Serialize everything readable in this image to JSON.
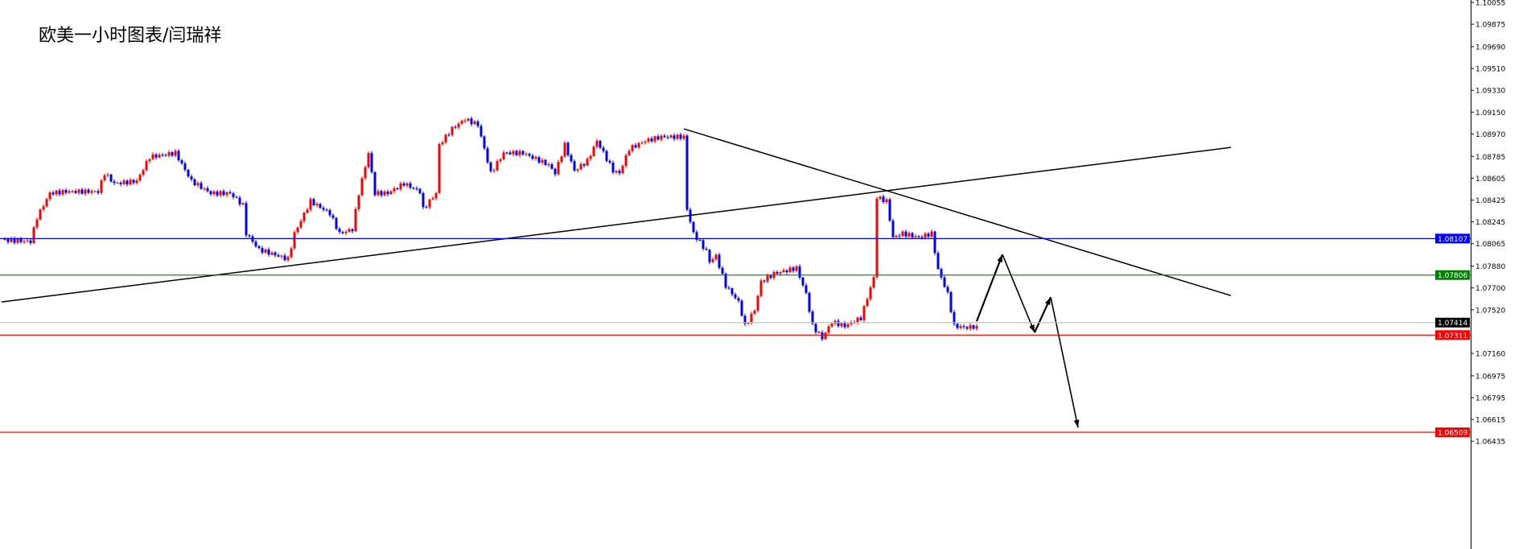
{
  "title": "欧美一小时图表/闫瑞祥",
  "chart_data": {
    "type": "candlestick",
    "title": "欧美一小时图表/闫瑞祥",
    "ylim": [
      1.064,
      1.1008
    ],
    "grid": false,
    "y_ticks": [
      "1.10055",
      "1.09875",
      "1.09690",
      "1.09510",
      "1.09330",
      "1.09150",
      "1.08970",
      "1.08785",
      "1.08605",
      "1.08425",
      "1.08245",
      "1.08065",
      "1.07880",
      "1.07700",
      "1.07520",
      "1.07160",
      "1.06975",
      "1.06795",
      "1.06615",
      "1.06435"
    ],
    "up_color": "#ff0000",
    "down_color": "#0000ff",
    "close_path": [
      [
        0,
        1.08096
      ],
      [
        9,
        1.08083
      ],
      [
        11,
        1.08282
      ],
      [
        15,
        1.08481
      ],
      [
        20,
        1.08495
      ],
      [
        30,
        1.08495
      ],
      [
        32,
        1.08647
      ],
      [
        35,
        1.08561
      ],
      [
        42,
        1.08581
      ],
      [
        46,
        1.0878
      ],
      [
        54,
        1.08813
      ],
      [
        59,
        1.08581
      ],
      [
        65,
        1.08481
      ],
      [
        71,
        1.08481
      ],
      [
        75,
        1.08382
      ],
      [
        76,
        1.08149
      ],
      [
        80,
        1.08017
      ],
      [
        89,
        1.07937
      ],
      [
        91,
        1.08149
      ],
      [
        96,
        1.08415
      ],
      [
        102,
        1.08315
      ],
      [
        105,
        1.08149
      ],
      [
        109,
        1.08183
      ],
      [
        111,
        1.08481
      ],
      [
        114,
        1.08813
      ],
      [
        116,
        1.08481
      ],
      [
        120,
        1.08481
      ],
      [
        125,
        1.08561
      ],
      [
        130,
        1.08495
      ],
      [
        131,
        1.08349
      ],
      [
        135,
        1.08481
      ],
      [
        136,
        1.0888
      ],
      [
        140,
        1.09013
      ],
      [
        144,
        1.09092
      ],
      [
        148,
        1.09046
      ],
      [
        150,
        1.08847
      ],
      [
        152,
        1.08647
      ],
      [
        156,
        1.08813
      ],
      [
        162,
        1.08813
      ],
      [
        170,
        1.08714
      ],
      [
        172,
        1.08647
      ],
      [
        175,
        1.0888
      ],
      [
        178,
        1.08667
      ],
      [
        182,
        1.08747
      ],
      [
        185,
        1.08913
      ],
      [
        190,
        1.08667
      ],
      [
        192,
        1.08647
      ],
      [
        195,
        1.08847
      ],
      [
        200,
        1.08913
      ],
      [
        205,
        1.08946
      ],
      [
        212,
        1.08946
      ],
      [
        213,
        1.08349
      ],
      [
        215,
        1.08149
      ],
      [
        219,
        1.08003
      ],
      [
        220,
        1.07917
      ],
      [
        222,
        1.07963
      ],
      [
        225,
        1.07718
      ],
      [
        229,
        1.07585
      ],
      [
        231,
        1.07386
      ],
      [
        234,
        1.07519
      ],
      [
        236,
        1.07751
      ],
      [
        240,
        1.07817
      ],
      [
        247,
        1.07864
      ],
      [
        250,
        1.07651
      ],
      [
        252,
        1.07386
      ],
      [
        255,
        1.07286
      ],
      [
        258,
        1.07419
      ],
      [
        262,
        1.07386
      ],
      [
        267,
        1.07452
      ],
      [
        271,
        1.07784
      ],
      [
        272,
        1.08448
      ],
      [
        275,
        1.08415
      ],
      [
        277,
        1.08116
      ],
      [
        280,
        1.08149
      ],
      [
        285,
        1.08116
      ],
      [
        289,
        1.08149
      ],
      [
        291,
        1.07851
      ],
      [
        294,
        1.07651
      ],
      [
        296,
        1.07386
      ],
      [
        300,
        1.07372
      ],
      [
        303,
        1.07386
      ]
    ],
    "horizontal_levels": [
      {
        "price": "1.08107",
        "color": "#0000ff"
      },
      {
        "price": "1.07806",
        "color": "#008000"
      },
      {
        "price": "1.07414",
        "color": "#c0c0c0",
        "label_bg": "#000000"
      },
      {
        "price": "1.07311",
        "color": "#ff0000"
      },
      {
        "price": "1.06509",
        "color": "#ff0000"
      }
    ],
    "trendlines": [
      {
        "from": [
          0,
          1.07584
        ],
        "to": [
          382,
          1.08859
        ],
        "color": "#000000"
      },
      {
        "from": [
          212,
          1.09012
        ],
        "to": [
          382,
          1.07637
        ],
        "color": "#000000"
      }
    ],
    "forecast_arrow_path": [
      [
        303,
        1.07425
      ],
      [
        311,
        1.07976
      ],
      [
        321,
        1.07332
      ],
      [
        326,
        1.07624
      ],
      [
        334.5,
        1.06548
      ]
    ]
  }
}
